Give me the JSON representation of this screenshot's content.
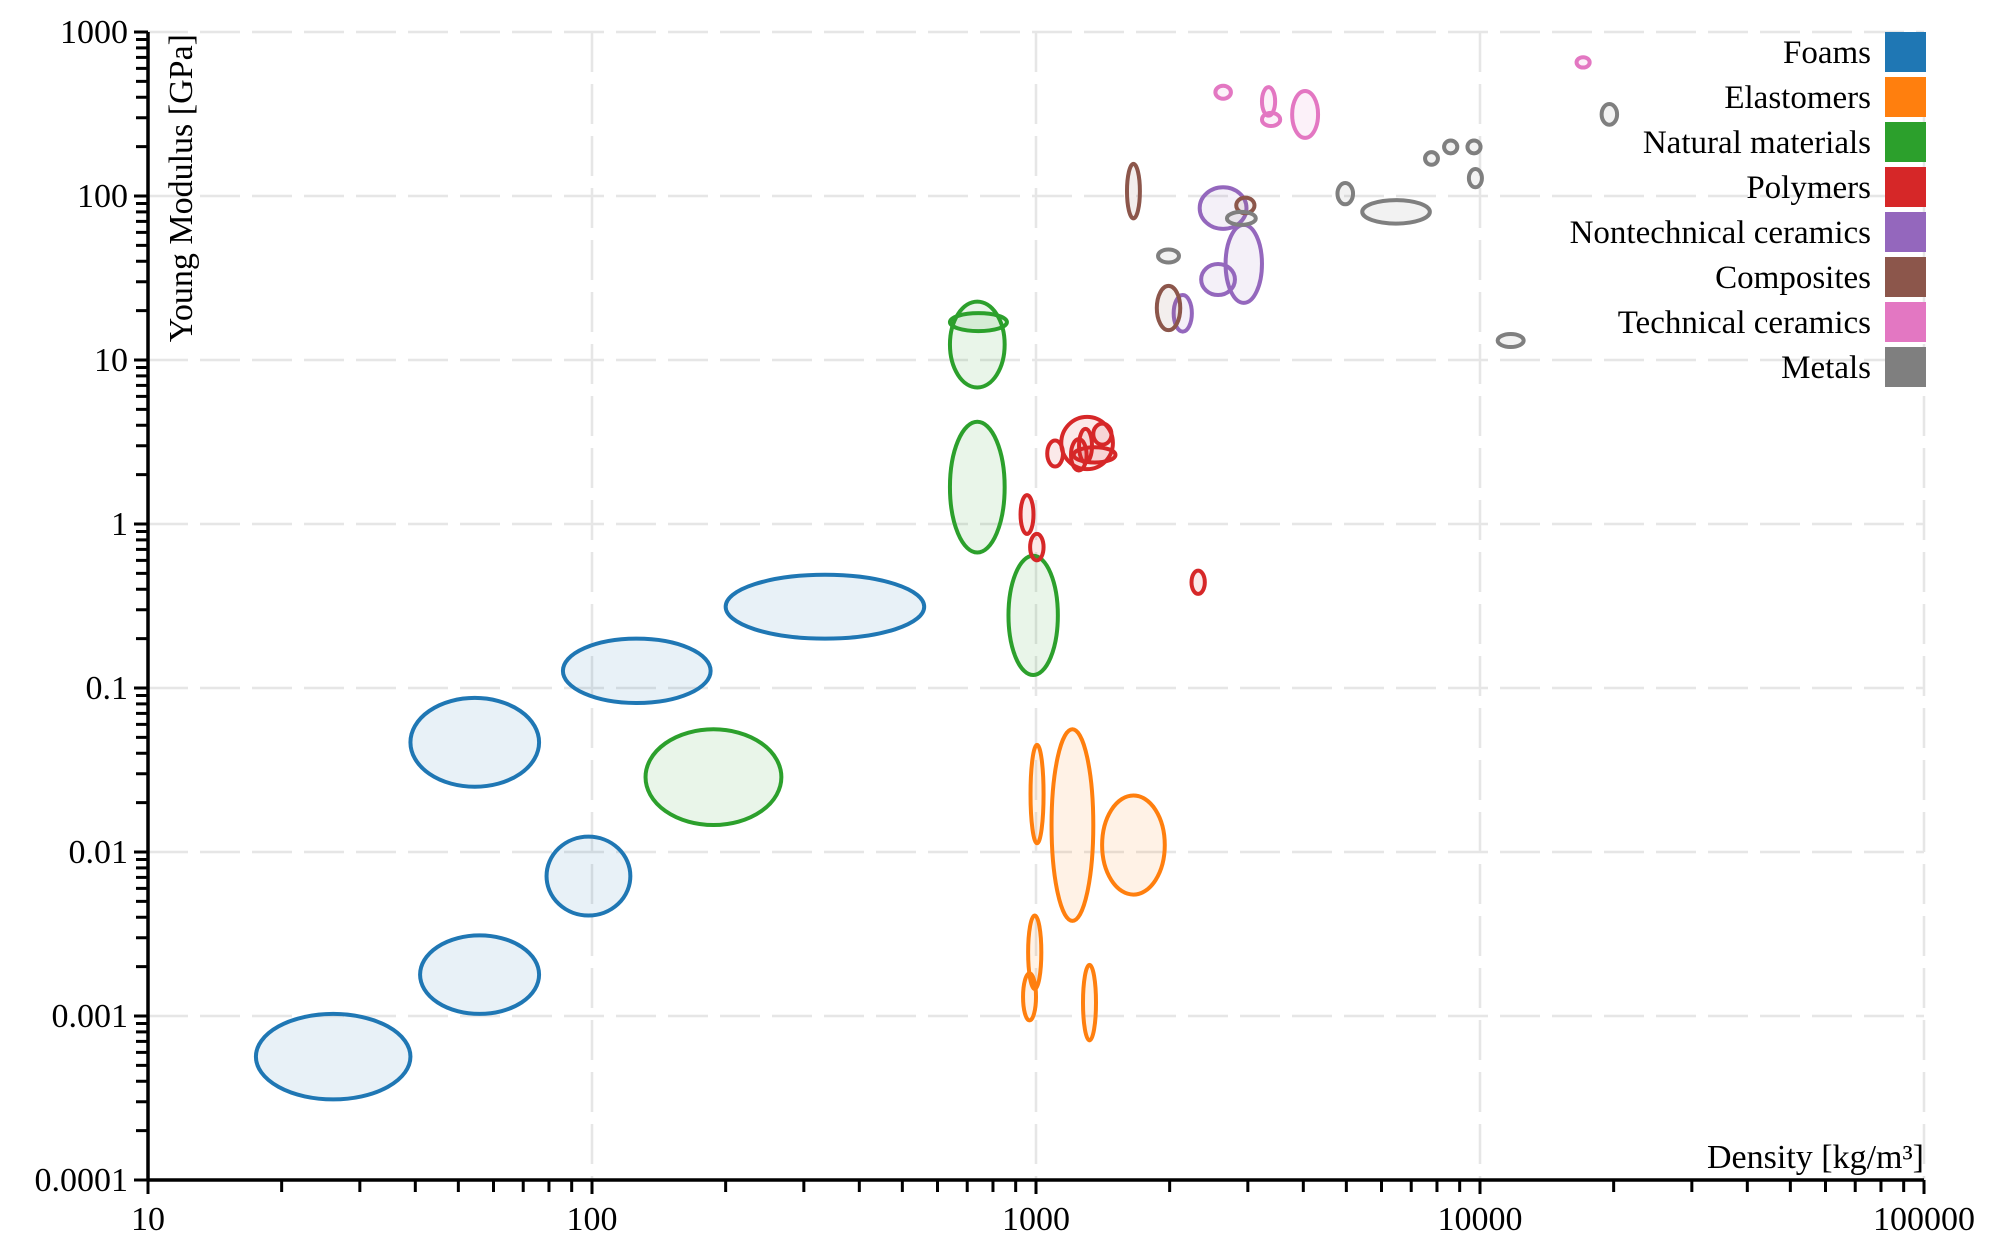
{
  "chart_data": {
    "type": "scatter",
    "mark": "ellipse",
    "xlabel": "Density [kg/m³]",
    "ylabel": "Young Modulus [GPa]",
    "xscale": "log",
    "yscale": "log",
    "xlim": [
      10,
      100000
    ],
    "ylim": [
      0.0001,
      1000
    ],
    "x_ticks": [
      "10",
      "100",
      "1000",
      "10000",
      "100000"
    ],
    "y_ticks": [
      "0.0001",
      "0.001",
      "0.01",
      "0.1",
      "1",
      "10",
      "100",
      "1000"
    ],
    "grid": true,
    "legend_position": "top-right",
    "series": [
      {
        "name": "Foams",
        "color": "#1f77b4",
        "regions": [
          {
            "density": [
              17.5,
              39
            ],
            "modulus": [
              0.00031,
              0.00103
            ]
          },
          {
            "density": [
              41,
              76
            ],
            "modulus": [
              0.00103,
              0.0031
            ]
          },
          {
            "density": [
              79,
              122
            ],
            "modulus": [
              0.0041,
              0.0124
            ]
          },
          {
            "density": [
              39,
              76
            ],
            "modulus": [
              0.025,
              0.087
            ]
          },
          {
            "density": [
              86,
              185
            ],
            "modulus": [
              0.081,
              0.2
            ]
          },
          {
            "density": [
              200,
              560
            ],
            "modulus": [
              0.2,
              0.49
            ]
          }
        ]
      },
      {
        "name": "Elastomers",
        "color": "#ff7f0e",
        "regions": [
          {
            "density": [
              972,
              1040
            ],
            "modulus": [
              0.0113,
              0.045
            ]
          },
          {
            "density": [
              1084,
              1346
            ],
            "modulus": [
              0.0038,
              0.056
            ]
          },
          {
            "density": [
              1409,
              1950
            ],
            "modulus": [
              0.0055,
              0.0221
            ]
          },
          {
            "density": [
              960,
              1028
            ],
            "modulus": [
              0.00146,
              0.0041
            ]
          },
          {
            "density": [
              935,
              1000
            ],
            "modulus": [
              0.00094,
              0.00182
            ]
          },
          {
            "density": [
              1276,
              1365
            ],
            "modulus": [
              0.00071,
              0.00205
            ]
          }
        ]
      },
      {
        "name": "Natural materials",
        "color": "#2ca02c",
        "regions": [
          {
            "density": [
              132,
              267
            ],
            "modulus": [
              0.0146,
              0.056
            ]
          },
          {
            "density": [
              867,
              1120
            ],
            "modulus": [
              0.12,
              0.64
            ]
          },
          {
            "density": [
              640,
              850
            ],
            "modulus": [
              0.67,
              4.2
            ]
          },
          {
            "density": [
              640,
              850
            ],
            "modulus": [
              6.8,
              22.7
            ]
          },
          {
            "density": [
              640,
              860
            ],
            "modulus": [
              15,
              19.3
            ]
          }
        ]
      },
      {
        "name": "Polymers",
        "color": "#d62728",
        "regions": [
          {
            "density": [
              923,
              987
            ],
            "modulus": [
              0.87,
              1.5
            ]
          },
          {
            "density": [
              970,
              1040
            ],
            "modulus": [
              0.6,
              0.87
            ]
          },
          {
            "density": [
              2240,
              2400
            ],
            "modulus": [
              0.375,
              0.52
            ]
          },
          {
            "density": [
              1140,
              1490
            ],
            "modulus": [
              2.16,
              4.5
            ]
          },
          {
            "density": [
              1060,
              1150
            ],
            "modulus": [
              2.24,
              3.23
            ]
          },
          {
            "density": [
              1199,
              1300
            ],
            "modulus": [
              2.12,
              3.29
            ]
          },
          {
            "density": [
              1346,
              1479
            ],
            "modulus": [
              3.05,
              4.09
            ]
          },
          {
            "density": [
              1250,
              1337
            ],
            "modulus": [
              2.37,
              3.8
            ]
          },
          {
            "density": [
              1216,
              1510
            ],
            "modulus": [
              2.37,
              2.94
            ]
          }
        ]
      },
      {
        "name": "Nontechnical ceramics",
        "color": "#9467bd",
        "regions": [
          {
            "density": [
              2337,
              2979
            ],
            "modulus": [
              63,
              113
            ]
          },
          {
            "density": [
              2673,
              3228
            ],
            "modulus": [
              22.3,
              66.7
            ]
          },
          {
            "density": [
              2355,
              2806
            ],
            "modulus": [
              24.9,
              38.5
            ]
          },
          {
            "density": [
              2042,
              2244
            ],
            "modulus": [
              14.9,
              24.9
            ]
          }
        ]
      },
      {
        "name": "Composites",
        "color": "#8c564b",
        "regions": [
          {
            "density": [
              1603,
              1714
            ],
            "modulus": [
              73,
              157
            ]
          },
          {
            "density": [
              1871,
              2113
            ],
            "modulus": [
              15.2,
              28.3
            ]
          },
          {
            "density": [
              2825,
              3105
            ],
            "modulus": [
              78.5,
              97.8
            ]
          }
        ]
      },
      {
        "name": "Technical ceramics",
        "color": "#e377c2",
        "regions": [
          {
            "density": [
              2535,
              2748
            ],
            "modulus": [
              392,
              470
            ]
          },
          {
            "density": [
              3228,
              3456
            ],
            "modulus": [
              309,
              461
            ]
          },
          {
            "density": [
              3228,
              3548
            ],
            "modulus": [
              267,
              321
            ]
          },
          {
            "density": [
              3775,
              4318
            ],
            "modulus": [
              226,
              437
            ]
          },
          {
            "density": [
              16500,
              17660
            ],
            "modulus": [
              607,
              702
            ]
          }
        ]
      },
      {
        "name": "Metals",
        "color": "#7f7f7f",
        "regions": [
          {
            "density": [
              1883,
              2099
            ],
            "modulus": [
              39.3,
              47.2
            ]
          },
          {
            "density": [
              2692,
              3126
            ],
            "modulus": [
              66.7,
              80
            ]
          },
          {
            "density": [
              4775,
              5177
            ],
            "modulus": [
              89,
              120
            ]
          },
          {
            "density": [
              5430,
              7710
            ],
            "modulus": [
              67.9,
              94.4
            ]
          },
          {
            "density": [
              7520,
              8040
            ],
            "modulus": [
              155,
              185
            ]
          },
          {
            "density": [
              8300,
              8890
            ],
            "modulus": [
              182,
              218
            ]
          },
          {
            "density": [
              9370,
              10030
            ],
            "modulus": [
              182,
              218
            ]
          },
          {
            "density": [
              9440,
              10100
            ],
            "modulus": [
              113,
              146
            ]
          },
          {
            "density": [
              10960,
              12540
            ],
            "modulus": [
              12,
              14.4
            ]
          },
          {
            "density": [
              18790,
              20360
            ],
            "modulus": [
              272,
              364
            ]
          }
        ]
      }
    ]
  }
}
